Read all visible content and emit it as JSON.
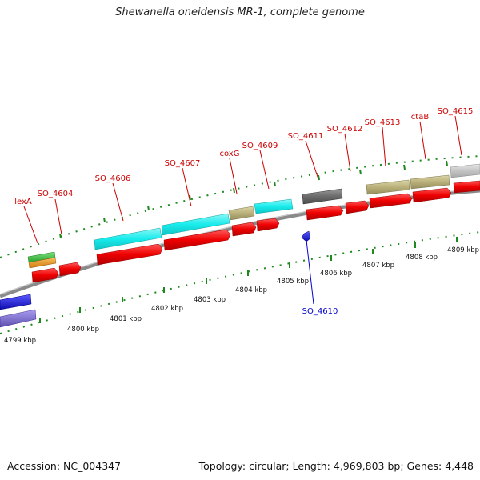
{
  "title": "Shewanella oneidensis MR-1, complete genome",
  "footer": {
    "accession": "Accession: NC_004347",
    "summary": "Topology: circular; Length: 4,969,803 bp; Genes: 4,448"
  },
  "colors": {
    "backbone": "#8a8a8a",
    "tick": "#1e8a1e",
    "cds_forward": "#ee0000",
    "label_forward": "#cc0000",
    "label_reverse": "#0000cc",
    "cyan_feature": "#19ecec",
    "olive_feature": "#b9b07a",
    "gray_feature": "#6b6b6b",
    "light_gray_feature": "#c4c4c4",
    "green_feature": "#35c63a",
    "orange_feature": "#ee9b1d",
    "blue_feature": "#1414dd",
    "purple_feature": "#7d6fcf"
  },
  "kbp_labels": [
    "4799 kbp",
    "4800 kbp",
    "4801 kbp",
    "4802 kbp",
    "4803 kbp",
    "4804 kbp",
    "4805 kbp",
    "4806 kbp",
    "4807 kbp",
    "4808 kbp",
    "4809 kbp"
  ],
  "gene_labels": [
    {
      "name": "lexA",
      "strand": "forward"
    },
    {
      "name": "SO_4604",
      "strand": "forward"
    },
    {
      "name": "SO_4606",
      "strand": "forward"
    },
    {
      "name": "SO_4607",
      "strand": "forward"
    },
    {
      "name": "coxG",
      "strand": "forward"
    },
    {
      "name": "SO_4609",
      "strand": "forward"
    },
    {
      "name": "SO_4611",
      "strand": "forward"
    },
    {
      "name": "SO_4612",
      "strand": "forward"
    },
    {
      "name": "SO_4613",
      "strand": "forward"
    },
    {
      "name": "ctaB",
      "strand": "forward"
    },
    {
      "name": "SO_4615",
      "strand": "forward"
    },
    {
      "name": "SO_4610",
      "strand": "reverse"
    }
  ]
}
